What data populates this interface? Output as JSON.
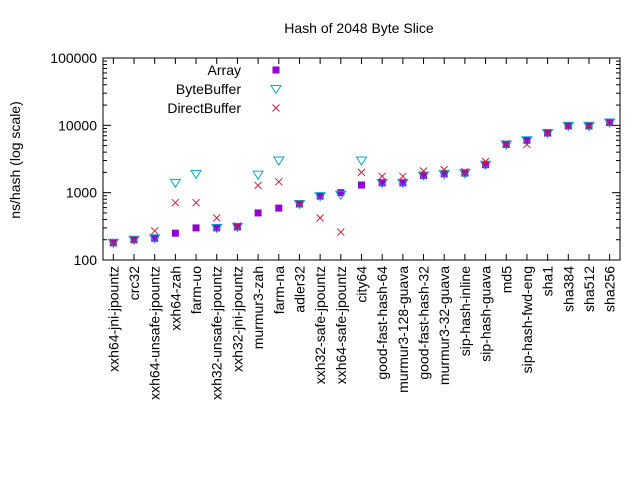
{
  "chart_data": {
    "type": "scatter",
    "title": "Hash of 2048 Byte Slice",
    "ylabel": "ns/hash (log scale)",
    "xlabel": "",
    "yscale": "log",
    "ylim": [
      100,
      100000
    ],
    "yticks": [
      {
        "value": 100,
        "label": "100"
      },
      {
        "value": 1000,
        "label": "1000"
      },
      {
        "value": 10000,
        "label": "10000"
      },
      {
        "value": 100000,
        "label": "100000"
      }
    ],
    "grid": false,
    "legend_position": "top-left",
    "categories": [
      "xxh64-jni-jpountz",
      "crc32",
      "xxh64-unsafe-jpountz",
      "xxh64-zah",
      "farm-uo",
      "xxh32-unsafe-jpountz",
      "xxh32-jni-jpountz",
      "murmur3-zah",
      "farm-na",
      "adler32",
      "xxh32-safe-jpountz",
      "xxh64-safe-jpountz",
      "city64",
      "good-fast-hash-64",
      "murmur3-128-guava",
      "good-fast-hash-32",
      "murmur3-32-guava",
      "sip-hash-inline",
      "sip-hash-guava",
      "md5",
      "sip-hash-fwd-eng",
      "sha1",
      "sha384",
      "sha512",
      "sha256"
    ],
    "series": [
      {
        "name": "Array",
        "marker": "filled-square",
        "color": "#9400d3",
        "values": [
          180,
          200,
          210,
          250,
          300,
          300,
          310,
          500,
          590,
          680,
          890,
          1000,
          1300,
          1400,
          1400,
          1800,
          1900,
          1950,
          2600,
          5200,
          6000,
          7700,
          9800,
          9800,
          11000
        ]
      },
      {
        "name": "ByteBuffer",
        "marker": "triangle-down",
        "color": "#0aa5c8",
        "values": [
          180,
          200,
          210,
          1400,
          1900,
          300,
          310,
          1850,
          3000,
          680,
          890,
          930,
          3000,
          1400,
          1400,
          1800,
          1900,
          1950,
          2600,
          5200,
          6000,
          7700,
          9800,
          9800,
          11000
        ]
      },
      {
        "name": "DirectBuffer",
        "marker": "cross",
        "color": "#c41e3a",
        "values": [
          180,
          200,
          270,
          710,
          710,
          420,
          320,
          1280,
          1450,
          680,
          420,
          260,
          2000,
          1750,
          1750,
          2100,
          2200,
          2050,
          2900,
          5300,
          5200,
          7700,
          9800,
          9800,
          11000
        ]
      }
    ]
  }
}
